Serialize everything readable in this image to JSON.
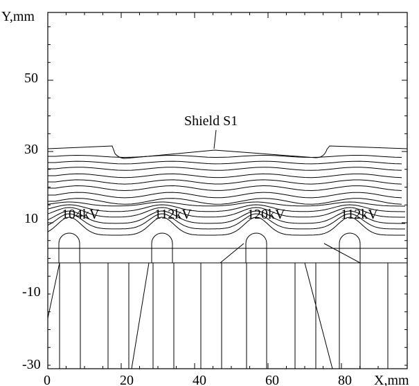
{
  "chart_data": {
    "type": "diagram",
    "xlabel": "X,mm",
    "ylabel": "Y,mm",
    "xlim": [
      0,
      88
    ],
    "ylim": [
      -31,
      68
    ],
    "x_ticks": [
      0,
      20,
      40,
      60,
      80
    ],
    "y_ticks": [
      -30,
      -10,
      10,
      30,
      50
    ],
    "y_tick_labels": [
      "-30",
      "-10",
      "10",
      "30",
      "50"
    ],
    "x_tick_labels": [
      "0",
      "20",
      "40",
      "60",
      "80"
    ],
    "shield_label": "Shield S1",
    "electrode_labels": [
      {
        "text": "104kV",
        "x": 4
      },
      {
        "text": "112kV",
        "x": 24
      },
      {
        "text": "120kV",
        "x": 44
      },
      {
        "text": "112kV",
        "x": 64
      }
    ]
  }
}
